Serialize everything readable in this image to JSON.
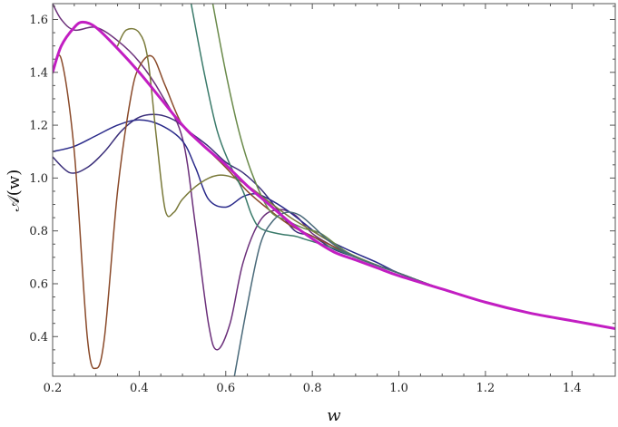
{
  "chart_data": {
    "type": "line",
    "title": "",
    "xlabel": "w",
    "ylabel": "𝒜(w)",
    "xlim": [
      0.2,
      1.5
    ],
    "ylim": [
      0.25,
      1.66
    ],
    "x_ticks": [
      0.2,
      0.4,
      0.6,
      0.8,
      1.0,
      1.2,
      1.4
    ],
    "x_tick_labels": [
      "0.2",
      "0.4",
      "0.6",
      "0.8",
      "1.0",
      "1.2",
      "1.4"
    ],
    "y_ticks": [
      0.4,
      0.6,
      0.8,
      1.0,
      1.2,
      1.4,
      1.6
    ],
    "y_tick_labels": [
      "0.4",
      "0.6",
      "0.8",
      "1.0",
      "1.2",
      "1.4",
      "1.6"
    ],
    "grid": false,
    "legend": "none",
    "series": [
      {
        "color": "#3b2f7a",
        "x": [
          0.2,
          0.24,
          0.28,
          0.32,
          0.36,
          0.4,
          0.44,
          0.48,
          0.52,
          0.56,
          0.6,
          0.64,
          0.68,
          0.72,
          0.76,
          0.8,
          0.85,
          0.9,
          1.0,
          1.1,
          1.2,
          1.3,
          1.4,
          1.5
        ],
        "y": [
          1.08,
          1.02,
          1.04,
          1.1,
          1.18,
          1.23,
          1.24,
          1.22,
          1.17,
          1.12,
          1.06,
          1.02,
          0.96,
          0.88,
          0.8,
          0.78,
          0.73,
          0.7,
          0.64,
          0.58,
          0.53,
          0.49,
          0.46,
          0.43
        ]
      },
      {
        "color": "#6b2f7a",
        "x": [
          0.2,
          0.22,
          0.25,
          0.3,
          0.35,
          0.4,
          0.45,
          0.5,
          0.53,
          0.56,
          0.58,
          0.61,
          0.64,
          0.68,
          0.72,
          0.76,
          0.8,
          0.85,
          0.9,
          1.0,
          1.1,
          1.2,
          1.3,
          1.4,
          1.5
        ],
        "y": [
          1.66,
          1.6,
          1.56,
          1.57,
          1.52,
          1.44,
          1.32,
          1.15,
          0.82,
          0.45,
          0.35,
          0.45,
          0.68,
          0.84,
          0.88,
          0.86,
          0.79,
          0.74,
          0.7,
          0.64,
          0.58,
          0.53,
          0.49,
          0.46,
          0.43
        ]
      },
      {
        "color": "#2a2a8a",
        "x": [
          0.2,
          0.25,
          0.3,
          0.35,
          0.4,
          0.45,
          0.5,
          0.53,
          0.56,
          0.6,
          0.64,
          0.67,
          0.7,
          0.74,
          0.78,
          0.82,
          0.88,
          0.95,
          1.0,
          1.1,
          1.2,
          1.3,
          1.4,
          1.5
        ],
        "y": [
          1.1,
          1.12,
          1.16,
          1.2,
          1.22,
          1.2,
          1.14,
          1.04,
          0.92,
          0.89,
          0.93,
          0.94,
          0.92,
          0.88,
          0.83,
          0.78,
          0.73,
          0.68,
          0.64,
          0.58,
          0.53,
          0.49,
          0.46,
          0.43
        ]
      },
      {
        "color": "#8a4a2a",
        "x": [
          0.2,
          0.22,
          0.25,
          0.28,
          0.3,
          0.32,
          0.35,
          0.38,
          0.4,
          0.43,
          0.46,
          0.5,
          0.55,
          0.6,
          0.65,
          0.7,
          0.75,
          0.8,
          0.85,
          0.9,
          1.0,
          1.1,
          1.2,
          1.3,
          1.4,
          1.5
        ],
        "y": [
          1.4,
          1.45,
          1.1,
          0.4,
          0.28,
          0.4,
          0.95,
          1.3,
          1.42,
          1.46,
          1.35,
          1.2,
          1.12,
          1.04,
          0.95,
          0.88,
          0.82,
          0.78,
          0.74,
          0.7,
          0.64,
          0.58,
          0.53,
          0.49,
          0.46,
          0.43
        ]
      },
      {
        "color": "#7a7a3a",
        "x": [
          0.35,
          0.37,
          0.4,
          0.42,
          0.44,
          0.46,
          0.48,
          0.5,
          0.54,
          0.58,
          0.62,
          0.66,
          0.7,
          0.75,
          0.8,
          0.85,
          0.9,
          1.0,
          1.1,
          1.2,
          1.3,
          1.4,
          1.5
        ],
        "y": [
          1.5,
          1.56,
          1.55,
          1.45,
          1.15,
          0.88,
          0.87,
          0.92,
          0.98,
          1.01,
          1.0,
          0.96,
          0.91,
          0.85,
          0.8,
          0.75,
          0.7,
          0.64,
          0.58,
          0.53,
          0.49,
          0.46,
          0.43
        ]
      },
      {
        "color": "#3a7a6a",
        "x": [
          0.52,
          0.55,
          0.58,
          0.61,
          0.64,
          0.66,
          0.68,
          0.72,
          0.76,
          0.78,
          0.8,
          0.84,
          0.9,
          1.0,
          1.1,
          1.2,
          1.3,
          1.4,
          1.5
        ],
        "y": [
          1.66,
          1.4,
          1.18,
          1.05,
          0.95,
          0.86,
          0.81,
          0.79,
          0.78,
          0.77,
          0.76,
          0.74,
          0.7,
          0.64,
          0.58,
          0.53,
          0.49,
          0.46,
          0.43
        ]
      },
      {
        "color": "#6a8a4a",
        "x": [
          0.57,
          0.6,
          0.63,
          0.66,
          0.7,
          0.74,
          0.78,
          0.82,
          0.88,
          0.95,
          1.0,
          1.1,
          1.2,
          1.3,
          1.4,
          1.5
        ],
        "y": [
          1.66,
          1.4,
          1.18,
          1.02,
          0.88,
          0.84,
          0.81,
          0.79,
          0.72,
          0.67,
          0.64,
          0.58,
          0.53,
          0.49,
          0.46,
          0.43
        ]
      },
      {
        "color": "#4a6a7a",
        "x": [
          0.62,
          0.65,
          0.68,
          0.71,
          0.74,
          0.77,
          0.8,
          0.84,
          0.9,
          1.0,
          1.1,
          1.2,
          1.3,
          1.4,
          1.5
        ],
        "y": [
          0.25,
          0.52,
          0.75,
          0.84,
          0.87,
          0.86,
          0.82,
          0.76,
          0.7,
          0.64,
          0.58,
          0.53,
          0.49,
          0.46,
          0.43
        ]
      },
      {
        "color": "#c21ec2",
        "emphasis": true,
        "x": [
          0.2,
          0.22,
          0.25,
          0.27,
          0.3,
          0.35,
          0.4,
          0.45,
          0.5,
          0.55,
          0.6,
          0.65,
          0.7,
          0.75,
          0.8,
          0.85,
          0.9,
          0.95,
          1.0,
          1.1,
          1.2,
          1.3,
          1.4,
          1.5
        ],
        "y": [
          1.4,
          1.5,
          1.57,
          1.59,
          1.57,
          1.49,
          1.4,
          1.3,
          1.2,
          1.12,
          1.05,
          0.97,
          0.9,
          0.83,
          0.77,
          0.72,
          0.69,
          0.66,
          0.63,
          0.58,
          0.53,
          0.49,
          0.46,
          0.43
        ]
      }
    ]
  }
}
